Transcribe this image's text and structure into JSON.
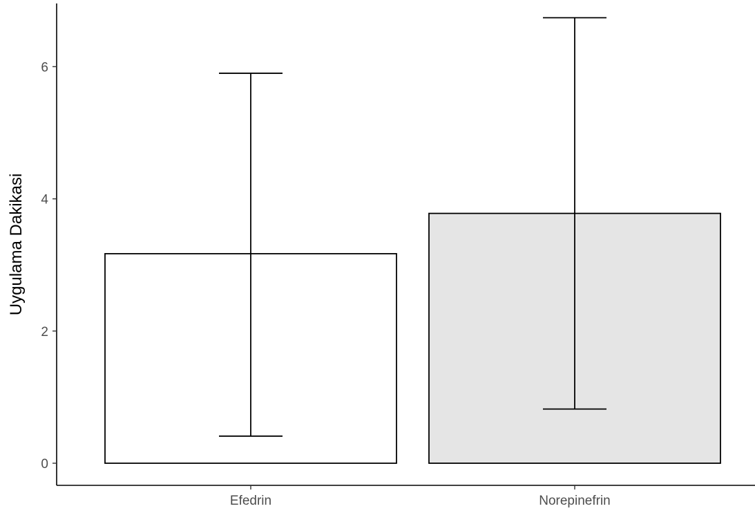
{
  "chart_data": {
    "type": "bar",
    "categories": [
      "Efedrin",
      "Norepinefrin"
    ],
    "values": [
      3.17,
      3.78
    ],
    "error_bars": {
      "lower": [
        0.41,
        0.82
      ],
      "upper": [
        5.9,
        6.74
      ]
    },
    "fill_colors": [
      "#ffffff",
      "#e5e5e5"
    ],
    "stroke_color": "#000000",
    "xlabel": "",
    "ylabel": "Uygulama Dakikasi",
    "ylim": [
      0,
      6.9
    ],
    "y_ticks": [
      0,
      2,
      4,
      6
    ],
    "grid": false,
    "legend": "none"
  }
}
